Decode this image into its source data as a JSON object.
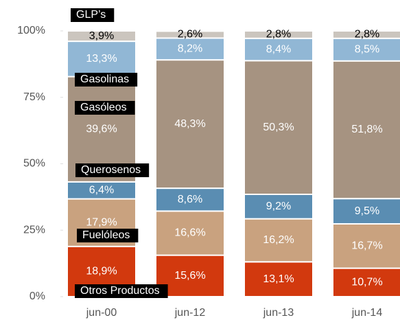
{
  "chart_data": {
    "type": "stacked_bar",
    "categories": [
      "jun-00",
      "jun-12",
      "jun-13",
      "jun-14"
    ],
    "ylim": [
      0,
      100
    ],
    "yticks": [
      {
        "value": 0,
        "label": "0%"
      },
      {
        "value": 25,
        "label": "25%"
      },
      {
        "value": 50,
        "label": "50%"
      },
      {
        "value": 75,
        "label": "75%"
      },
      {
        "value": 100,
        "label": "100%"
      }
    ],
    "series": [
      {
        "name": "Otros Productos",
        "color": "#d2390e",
        "label_color": "#ffffff",
        "values": [
          18.9,
          15.6,
          13.1,
          10.7
        ],
        "value_labels": [
          "18,9%",
          "15,6%",
          "13,1%",
          "10,7%"
        ]
      },
      {
        "name": "Fuelóleos",
        "color": "#c9a27f",
        "label_color": "#ffffff",
        "values": [
          17.9,
          16.6,
          16.2,
          16.7
        ],
        "value_labels": [
          "17,9%",
          "16,6%",
          "16,2%",
          "16,7%"
        ]
      },
      {
        "name": "Querosenos",
        "color": "#5a8db2",
        "label_color": "#ffffff",
        "values": [
          6.4,
          8.6,
          9.2,
          9.5
        ],
        "value_labels": [
          "6,4%",
          "8,6%",
          "9,2%",
          "9,5%"
        ]
      },
      {
        "name": "Gasóleos",
        "color": "#a69381",
        "label_color": "#ffffff",
        "values": [
          39.6,
          48.3,
          50.3,
          51.8
        ],
        "value_labels": [
          "39,6%",
          "48,3%",
          "50,3%",
          "51,8%"
        ]
      },
      {
        "name": "Gasolinas",
        "color": "#91b7d5",
        "label_color": "#ffffff",
        "values": [
          13.3,
          8.2,
          8.4,
          8.5
        ],
        "value_labels": [
          "13,3%",
          "8,2%",
          "8,4%",
          "8,5%"
        ]
      },
      {
        "name": "GLP’s",
        "color": "#cbc5be",
        "label_color": "#000000",
        "values": [
          3.9,
          2.6,
          2.8,
          2.8
        ],
        "value_labels": [
          "3,9%",
          "2,6%",
          "2,8%",
          "2,8%"
        ]
      }
    ]
  }
}
